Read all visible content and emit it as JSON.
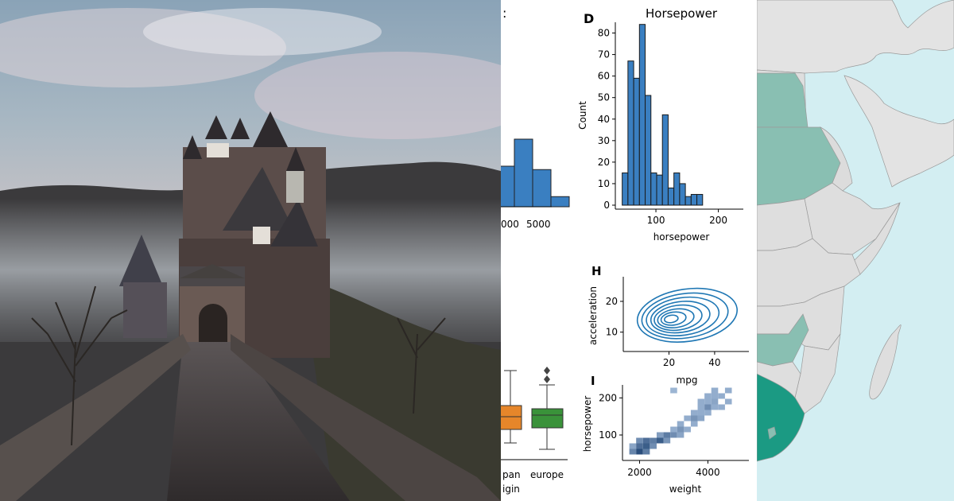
{
  "colors": {
    "bar_fill": "#3a7fc1",
    "kde_line": "#1f77b4",
    "box_orange": "#e6862a",
    "box_green": "#3a923a",
    "map_sea": "#d3eef2",
    "map_land": "#dedede",
    "map_teal_light": "#89bfb2",
    "map_teal_dark": "#1b9a83"
  },
  "photo": {
    "icon": "castle-photo"
  },
  "partial_left": {
    "title_fragment": ":",
    "tick_labels": [
      "000",
      "5000"
    ],
    "bar_values": [
      0.6,
      1.0,
      0.55,
      0.15
    ],
    "box_labels": [
      "pan",
      "europe"
    ],
    "xlabel_fragment": "igin"
  },
  "panel_d": {
    "letter": "D",
    "title": "Horsepower",
    "xlabel": "horsepower",
    "ylabel": "Count"
  },
  "panel_h": {
    "letter": "H",
    "xlabel": "mpg",
    "ylabel": "acceleration"
  },
  "panel_i": {
    "letter": "I",
    "xlabel": "weight",
    "ylabel": "horsepower"
  },
  "chart_data": [
    {
      "type": "bar",
      "title": "Horsepower",
      "xlabel": "horsepower",
      "ylabel": "Count",
      "bin_start": 46,
      "bin_width": 9.2,
      "values": [
        15,
        67,
        59,
        84,
        51,
        15,
        14,
        42,
        8,
        15,
        10,
        4,
        5,
        5
      ],
      "xticks": [
        "100",
        "200"
      ],
      "xtick_values": [
        100,
        200
      ],
      "yticks": [
        "0",
        "10",
        "20",
        "30",
        "40",
        "50",
        "60",
        "70",
        "80"
      ],
      "ylim": [
        0,
        85
      ],
      "xlim": [
        35,
        240
      ]
    },
    {
      "type": "line",
      "xlabel": "mpg",
      "ylabel": "acceleration",
      "xticks": [
        "20",
        "40"
      ],
      "yticks": [
        "10",
        "20"
      ],
      "xlim": [
        0,
        55
      ],
      "ylim": [
        5,
        28
      ],
      "contours": [
        {
          "cx": 28,
          "cy": 15.5,
          "rx": 22,
          "ry": 8.5
        },
        {
          "cx": 27,
          "cy": 15.3,
          "rx": 19,
          "ry": 7.2
        },
        {
          "cx": 26,
          "cy": 15.1,
          "rx": 16,
          "ry": 6.1
        },
        {
          "cx": 25,
          "cy": 14.9,
          "rx": 13,
          "ry": 5.0
        },
        {
          "cx": 24,
          "cy": 14.7,
          "rx": 10.5,
          "ry": 4.0
        },
        {
          "cx": 23,
          "cy": 14.5,
          "rx": 8,
          "ry": 3.0
        },
        {
          "cx": 22,
          "cy": 14.4,
          "rx": 5.5,
          "ry": 2.1
        },
        {
          "cx": 21,
          "cy": 14.3,
          "rx": 3,
          "ry": 1.2
        }
      ]
    },
    {
      "type": "heatmap",
      "xlabel": "weight",
      "ylabel": "horsepower",
      "xticks": [
        "2000",
        "4000"
      ],
      "yticks": [
        "100",
        "200"
      ],
      "xlim": [
        1500,
        5200
      ],
      "ylim": [
        40,
        235
      ],
      "cells": [
        {
          "x": 1800,
          "y": 55,
          "v": 0.55
        },
        {
          "x": 2000,
          "y": 55,
          "v": 0.9
        },
        {
          "x": 2200,
          "y": 55,
          "v": 0.6
        },
        {
          "x": 1800,
          "y": 70,
          "v": 0.35
        },
        {
          "x": 2000,
          "y": 70,
          "v": 0.7
        },
        {
          "x": 2200,
          "y": 70,
          "v": 0.8
        },
        {
          "x": 2400,
          "y": 70,
          "v": 0.5
        },
        {
          "x": 2000,
          "y": 85,
          "v": 0.5
        },
        {
          "x": 2200,
          "y": 85,
          "v": 0.7
        },
        {
          "x": 2400,
          "y": 85,
          "v": 0.6
        },
        {
          "x": 2600,
          "y": 85,
          "v": 0.8
        },
        {
          "x": 2800,
          "y": 85,
          "v": 0.45
        },
        {
          "x": 2600,
          "y": 100,
          "v": 0.4
        },
        {
          "x": 2800,
          "y": 100,
          "v": 0.6
        },
        {
          "x": 3000,
          "y": 100,
          "v": 0.5
        },
        {
          "x": 3200,
          "y": 100,
          "v": 0.35
        },
        {
          "x": 3000,
          "y": 115,
          "v": 0.3
        },
        {
          "x": 3200,
          "y": 115,
          "v": 0.45
        },
        {
          "x": 3400,
          "y": 115,
          "v": 0.3
        },
        {
          "x": 3200,
          "y": 130,
          "v": 0.3
        },
        {
          "x": 3600,
          "y": 130,
          "v": 0.3
        },
        {
          "x": 3400,
          "y": 145,
          "v": 0.3
        },
        {
          "x": 3600,
          "y": 145,
          "v": 0.45
        },
        {
          "x": 3800,
          "y": 145,
          "v": 0.35
        },
        {
          "x": 3600,
          "y": 160,
          "v": 0.3
        },
        {
          "x": 3800,
          "y": 160,
          "v": 0.3
        },
        {
          "x": 4000,
          "y": 160,
          "v": 0.3
        },
        {
          "x": 3800,
          "y": 175,
          "v": 0.3
        },
        {
          "x": 4000,
          "y": 175,
          "v": 0.5
        },
        {
          "x": 4200,
          "y": 175,
          "v": 0.3
        },
        {
          "x": 4400,
          "y": 175,
          "v": 0.3
        },
        {
          "x": 3800,
          "y": 190,
          "v": 0.3
        },
        {
          "x": 4000,
          "y": 190,
          "v": 0.3
        },
        {
          "x": 4200,
          "y": 190,
          "v": 0.35
        },
        {
          "x": 4600,
          "y": 190,
          "v": 0.3
        },
        {
          "x": 4000,
          "y": 205,
          "v": 0.3
        },
        {
          "x": 4200,
          "y": 205,
          "v": 0.3
        },
        {
          "x": 4400,
          "y": 205,
          "v": 0.3
        },
        {
          "x": 4200,
          "y": 220,
          "v": 0.3
        },
        {
          "x": 4600,
          "y": 220,
          "v": 0.3
        },
        {
          "x": 3000,
          "y": 220,
          "v": 0.25
        }
      ]
    }
  ]
}
